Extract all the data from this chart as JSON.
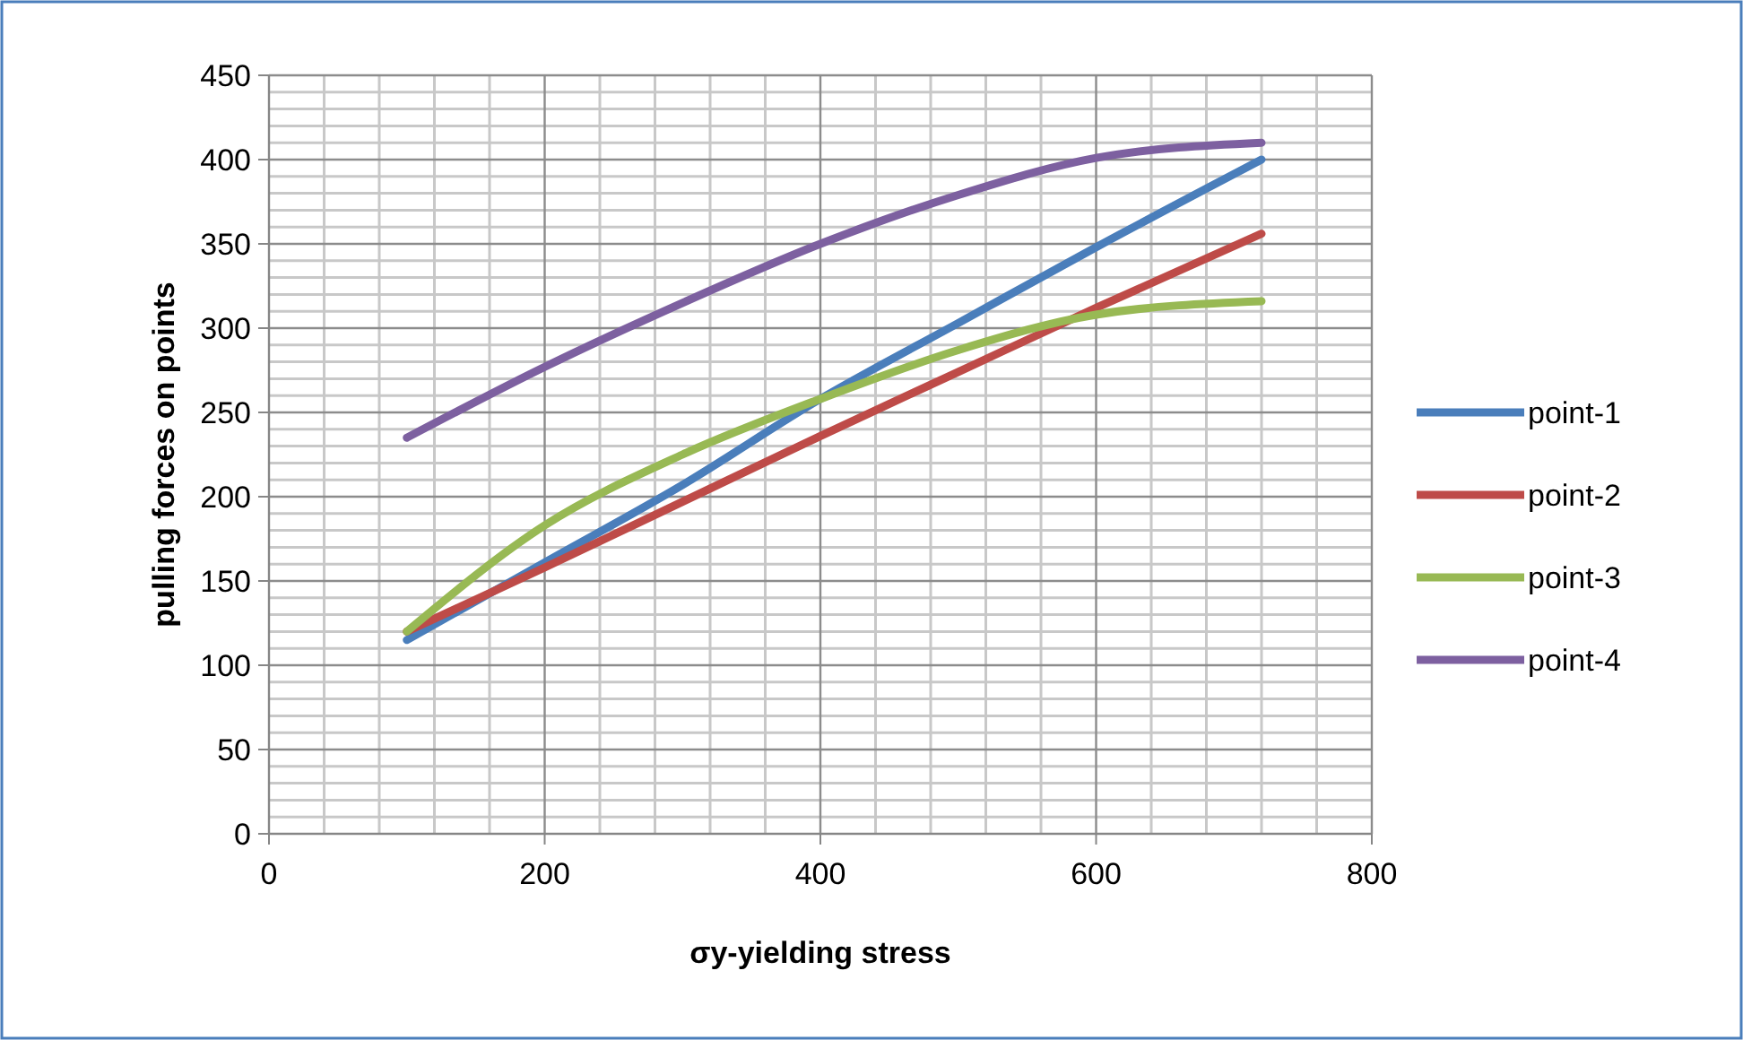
{
  "chart_data": {
    "type": "line",
    "xlabel": "σy-yielding stress",
    "ylabel": "pulling forces on points",
    "x": [
      100,
      200,
      300,
      400,
      500,
      600,
      720
    ],
    "series": [
      {
        "name": "point-1",
        "color": "#4a7ebb",
        "values": [
          115,
          161,
          207,
          258,
          303,
          348,
          400
        ]
      },
      {
        "name": "point-2",
        "color": "#be4b48",
        "values": [
          120,
          158,
          197,
          236,
          274,
          312,
          356
        ]
      },
      {
        "name": "point-3",
        "color": "#98b954",
        "values": [
          120,
          183,
          225,
          258,
          287,
          308,
          316
        ]
      },
      {
        "name": "point-4",
        "color": "#7d60a0",
        "values": [
          235,
          277,
          315,
          350,
          379,
          401,
          410
        ]
      }
    ],
    "xlim": [
      0,
      800
    ],
    "xticks": [
      0,
      200,
      400,
      600,
      800
    ],
    "ylim": [
      0,
      450
    ],
    "yticks": [
      0,
      50,
      100,
      150,
      200,
      250,
      300,
      350,
      400,
      450
    ],
    "grid": true,
    "legend": "right",
    "marker": "none",
    "line_style": "solid"
  }
}
